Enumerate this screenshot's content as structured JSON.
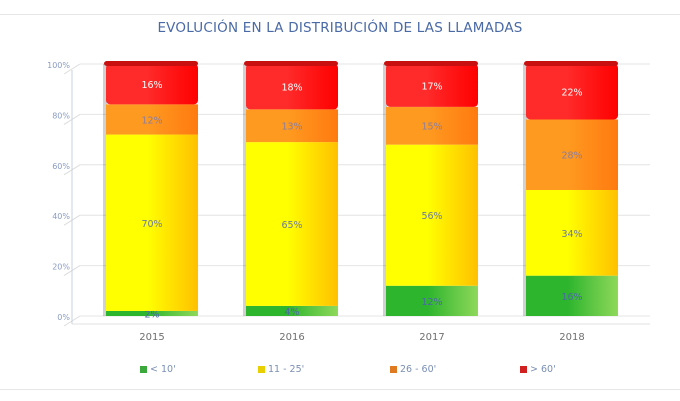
{
  "chart_data": {
    "type": "bar",
    "stacked": true,
    "normalized": true,
    "title": "EVOLUCIÓN EN LA DISTRIBUCIÓN DE LAS LLAMADAS",
    "xlabel": "",
    "ylabel": "",
    "categories": [
      "2015",
      "2016",
      "2017",
      "2018"
    ],
    "ylim": [
      0,
      100
    ],
    "yticks": [
      "0%",
      "20%",
      "40%",
      "60%",
      "80%",
      "100%"
    ],
    "ytick_values": [
      0,
      20,
      40,
      60,
      80,
      100
    ],
    "grid": true,
    "legend_position": "bottom",
    "series": [
      {
        "name": "< 10'",
        "values": [
          2,
          4,
          12,
          16
        ],
        "labels": [
          "2%",
          "4%",
          "12%",
          "16%"
        ],
        "color": "#2db52d",
        "color_light": "#8fd85a",
        "label_color": "#4a6aa5"
      },
      {
        "name": "11 - 25'",
        "values": [
          70,
          65,
          56,
          34
        ],
        "labels": [
          "70%",
          "65%",
          "56%",
          "34%"
        ],
        "color": "#ffff00",
        "color_light": "#ffc000",
        "label_color": "#6b7aa0"
      },
      {
        "name": "26 - 60'",
        "values": [
          12,
          13,
          15,
          28
        ],
        "labels": [
          "12%",
          "13%",
          "15%",
          "28%"
        ],
        "color": "#ff9a20",
        "color_light": "#ff7a10",
        "label_color": "#8a7fa0"
      },
      {
        "name": "> 60'",
        "values": [
          16,
          18,
          17,
          22
        ],
        "labels": [
          "16%",
          "18%",
          "17%",
          "22%"
        ],
        "color": "#ff2a2a",
        "color_light": "#ff0000",
        "label_color": "#ffffff"
      }
    ],
    "legend_colors": [
      "#3aa83a",
      "#e8d000",
      "#e07a20",
      "#d02020"
    ]
  }
}
